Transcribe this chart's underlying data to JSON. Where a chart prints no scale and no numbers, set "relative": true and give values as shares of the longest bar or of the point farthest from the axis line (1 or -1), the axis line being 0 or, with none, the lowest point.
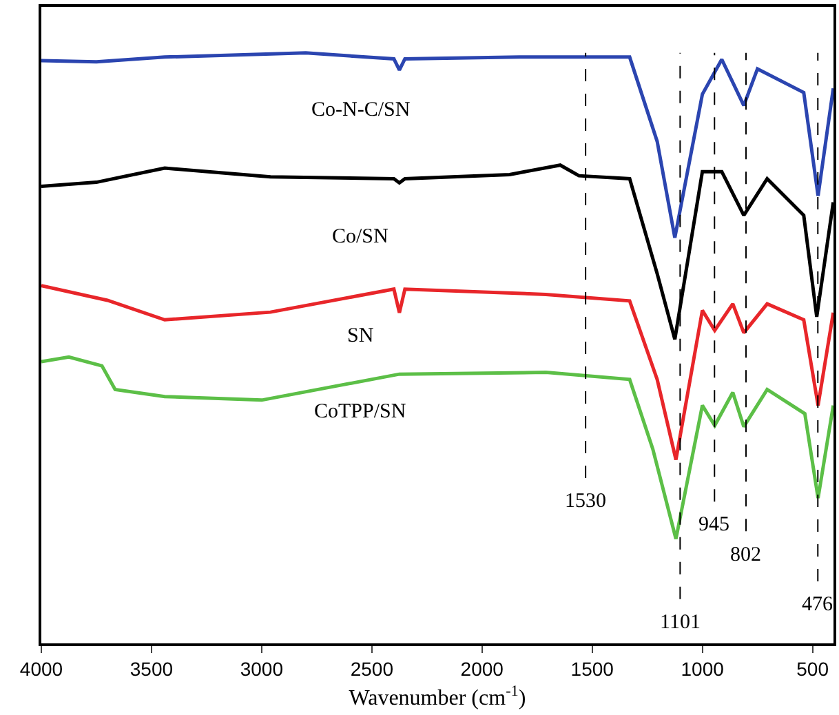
{
  "chart_data": {
    "type": "line",
    "relative": true,
    "xlabel": "Wavenumber (cm$^{-1}$)",
    "xlim": [
      4000,
      405
    ],
    "xticks": [
      4000,
      3500,
      3000,
      2500,
      2000,
      1500,
      1000,
      500
    ],
    "legend": false,
    "marker": "none",
    "line_style": "solid",
    "series": [
      {
        "name": "Co-N-C/SN",
        "color": "#2b45b0",
        "x": [
          4000,
          3750,
          3440,
          2800,
          2400,
          2375,
          2350,
          1830,
          1330,
          1205,
          1125,
          1000,
          912,
          812,
          750,
          540,
          475,
          406
        ],
        "values": [
          0.987,
          0.985,
          0.993,
          1.0,
          0.99,
          0.971,
          0.99,
          0.993,
          0.993,
          0.85,
          0.687,
          0.93,
          0.989,
          0.911,
          0.973,
          0.933,
          0.758,
          0.94
        ]
      },
      {
        "name": "Co/SN",
        "color": "#000000",
        "x": [
          4000,
          3750,
          3440,
          2960,
          2400,
          2375,
          2350,
          1875,
          1645,
          1560,
          1330,
          1205,
          1125,
          1000,
          912,
          812,
          706,
          540,
          481,
          406
        ],
        "values": [
          0.774,
          0.781,
          0.805,
          0.79,
          0.787,
          0.78,
          0.787,
          0.794,
          0.81,
          0.792,
          0.787,
          0.626,
          0.515,
          0.799,
          0.799,
          0.725,
          0.787,
          0.725,
          0.553,
          0.747
        ]
      },
      {
        "name": "SN",
        "color": "#e8262a",
        "x": [
          4000,
          3700,
          3440,
          2960,
          2400,
          2375,
          2350,
          1710,
          1330,
          1205,
          1120,
          1000,
          944,
          862,
          812,
          706,
          540,
          475,
          406
        ],
        "values": [
          0.606,
          0.581,
          0.548,
          0.561,
          0.6,
          0.56,
          0.6,
          0.591,
          0.58,
          0.447,
          0.311,
          0.564,
          0.53,
          0.575,
          0.526,
          0.575,
          0.548,
          0.403,
          0.56
        ]
      },
      {
        "name": "CoTPP/SN",
        "color": "#5cbf47",
        "x": [
          4000,
          3875,
          3725,
          3665,
          3440,
          3000,
          2375,
          1710,
          1330,
          1225,
          1120,
          1000,
          944,
          862,
          812,
          706,
          535,
          475,
          406
        ],
        "values": [
          0.477,
          0.485,
          0.47,
          0.43,
          0.418,
          0.412,
          0.456,
          0.459,
          0.447,
          0.329,
          0.177,
          0.403,
          0.369,
          0.425,
          0.367,
          0.43,
          0.389,
          0.246,
          0.403
        ]
      }
    ],
    "ref_lines": [
      {
        "axis": "x",
        "value": 1530,
        "label": "1530",
        "line_style": "dashed",
        "color": "#000000"
      },
      {
        "axis": "x",
        "value": 1101,
        "label": "1101",
        "line_style": "dashed",
        "color": "#000000"
      },
      {
        "axis": "x",
        "value": 945,
        "label": "945",
        "line_style": "dashed",
        "color": "#000000"
      },
      {
        "axis": "x",
        "value": 802,
        "label": "802",
        "line_style": "dashed",
        "color": "#000000"
      },
      {
        "axis": "x",
        "value": 476,
        "label": "476",
        "line_style": "dashed",
        "color": "#000000"
      }
    ]
  }
}
